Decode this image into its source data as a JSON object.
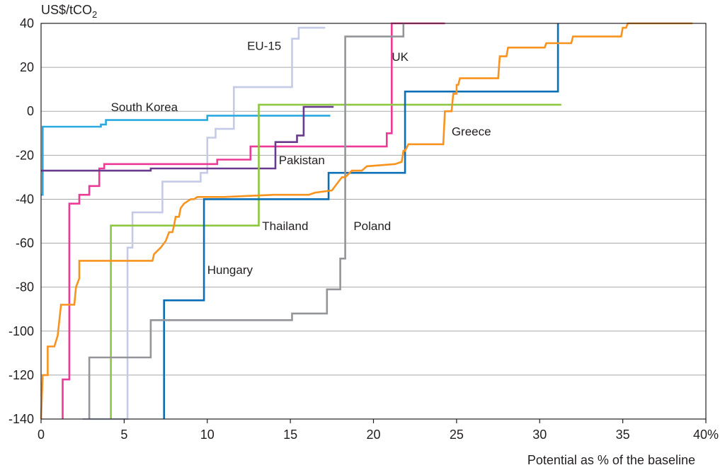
{
  "chart_data": {
    "type": "line",
    "ylabel_main": "US$/tCO",
    "ylabel_sub": "2",
    "xlabel": "Potential as % of the baseline",
    "xlim": [
      0,
      40
    ],
    "ylim": [
      -140,
      40
    ],
    "x_ticks": [
      {
        "value": 0,
        "label": "0"
      },
      {
        "value": 5,
        "label": "5"
      },
      {
        "value": 10,
        "label": "10"
      },
      {
        "value": 15,
        "label": "15"
      },
      {
        "value": 20,
        "label": "20"
      },
      {
        "value": 25,
        "label": "25"
      },
      {
        "value": 30,
        "label": "30"
      },
      {
        "value": 35,
        "label": "35"
      },
      {
        "value": 40,
        "label": "40%"
      }
    ],
    "y_ticks": [
      {
        "value": 40,
        "label": "40"
      },
      {
        "value": 20,
        "label": "20"
      },
      {
        "value": 0,
        "label": "0"
      },
      {
        "value": -20,
        "label": "-20"
      },
      {
        "value": -40,
        "label": "-40"
      },
      {
        "value": -60,
        "label": "-60"
      },
      {
        "value": -80,
        "label": "-80"
      },
      {
        "value": -100,
        "label": "-100"
      },
      {
        "value": -120,
        "label": "-120"
      },
      {
        "value": -140,
        "label": "-140"
      }
    ],
    "grid": "horizontal",
    "series": [
      {
        "name": "EU-15",
        "color": "#c5cbe7",
        "label_at": [
          12.4,
          28
        ],
        "points": [
          [
            2.5,
            -140
          ],
          [
            5.2,
            -140
          ],
          [
            5.2,
            -62
          ],
          [
            5.5,
            -62
          ],
          [
            5.5,
            -46
          ],
          [
            7.3,
            -46
          ],
          [
            7.3,
            -32
          ],
          [
            9.6,
            -32
          ],
          [
            9.6,
            -28
          ],
          [
            10,
            -28
          ],
          [
            10,
            -12
          ],
          [
            10.5,
            -12
          ],
          [
            10.5,
            -8
          ],
          [
            11.6,
            -8
          ],
          [
            11.6,
            11
          ],
          [
            15.1,
            11
          ],
          [
            15.1,
            33
          ],
          [
            15.5,
            33
          ],
          [
            15.5,
            38
          ],
          [
            17.1,
            38
          ]
        ]
      },
      {
        "name": "South Korea",
        "color": "#29a9e0",
        "label_at": [
          4.2,
          0
        ],
        "points": [
          [
            0,
            -38
          ],
          [
            0.1,
            -38
          ],
          [
            0.1,
            -7
          ],
          [
            3.6,
            -7
          ],
          [
            3.6,
            -6
          ],
          [
            3.9,
            -6
          ],
          [
            3.9,
            -4
          ],
          [
            10,
            -4
          ],
          [
            10,
            -2
          ],
          [
            17.4,
            -2
          ]
        ]
      },
      {
        "name": "UK",
        "color": "#ec3a96",
        "label_at": [
          21.1,
          23
        ],
        "points": [
          [
            1.3,
            -140
          ],
          [
            1.3,
            -122
          ],
          [
            1.7,
            -122
          ],
          [
            1.7,
            -42
          ],
          [
            2.3,
            -42
          ],
          [
            2.3,
            -38
          ],
          [
            2.9,
            -38
          ],
          [
            2.9,
            -34
          ],
          [
            3.5,
            -34
          ],
          [
            3.5,
            -26
          ],
          [
            3.8,
            -26
          ],
          [
            3.8,
            -24
          ],
          [
            10.6,
            -24
          ],
          [
            10.6,
            -22
          ],
          [
            12.6,
            -22
          ],
          [
            12.6,
            -16
          ],
          [
            20.8,
            -16
          ],
          [
            20.8,
            -10
          ],
          [
            21.1,
            -10
          ],
          [
            21.1,
            40
          ],
          [
            24.3,
            40
          ]
        ]
      },
      {
        "name": "Pakistan",
        "color": "#6a3a8e",
        "label_at": [
          14.3,
          -24
        ],
        "points": [
          [
            0,
            -27
          ],
          [
            6.6,
            -27
          ],
          [
            6.6,
            -26
          ],
          [
            14.1,
            -26
          ],
          [
            14.1,
            -14
          ],
          [
            15.4,
            -14
          ],
          [
            15.4,
            -11
          ],
          [
            15.8,
            -11
          ],
          [
            15.8,
            2
          ],
          [
            17.6,
            2
          ]
        ]
      },
      {
        "name": "Thailand",
        "color": "#8dc641",
        "label_at": [
          13.3,
          -54
        ],
        "points": [
          [
            4.2,
            -140
          ],
          [
            4.2,
            -52
          ],
          [
            13.1,
            -52
          ],
          [
            13.1,
            3
          ],
          [
            31.3,
            3
          ]
        ]
      },
      {
        "name": "Hungary",
        "color": "#0b6fb6",
        "label_at": [
          10,
          -74
        ],
        "points": [
          [
            7.4,
            -140
          ],
          [
            7.4,
            -86
          ],
          [
            9.8,
            -86
          ],
          [
            9.8,
            -40
          ],
          [
            17.3,
            -40
          ],
          [
            17.3,
            -28
          ],
          [
            21.9,
            -28
          ],
          [
            21.9,
            9
          ],
          [
            31.1,
            9
          ],
          [
            31.1,
            40
          ]
        ]
      },
      {
        "name": "Poland",
        "color": "#939598",
        "label_at": [
          18.8,
          -54
        ],
        "points": [
          [
            2.9,
            -140
          ],
          [
            2.9,
            -112
          ],
          [
            6.6,
            -112
          ],
          [
            6.6,
            -95
          ],
          [
            15.1,
            -95
          ],
          [
            15.1,
            -92
          ],
          [
            17.2,
            -92
          ],
          [
            17.2,
            -81
          ],
          [
            18,
            -81
          ],
          [
            18,
            -67
          ],
          [
            18.3,
            -67
          ],
          [
            18.3,
            34
          ],
          [
            21.8,
            34
          ],
          [
            21.8,
            40
          ]
        ]
      },
      {
        "name": "Greece",
        "color": "#f7931e",
        "label_at": [
          24.7,
          -11
        ],
        "points": [
          [
            0,
            -140
          ],
          [
            0.1,
            -120
          ],
          [
            0.4,
            -120
          ],
          [
            0.4,
            -107
          ],
          [
            0.8,
            -107
          ],
          [
            1,
            -102
          ],
          [
            1.2,
            -88
          ],
          [
            2,
            -88
          ],
          [
            2.1,
            -80
          ],
          [
            2.3,
            -76
          ],
          [
            2.3,
            -68
          ],
          [
            6.7,
            -68
          ],
          [
            6.8,
            -65
          ],
          [
            7.2,
            -62
          ],
          [
            7.5,
            -59
          ],
          [
            7.7,
            -55
          ],
          [
            7.9,
            -55
          ],
          [
            8,
            -52
          ],
          [
            8.1,
            -48
          ],
          [
            8.3,
            -48
          ],
          [
            8.4,
            -44
          ],
          [
            8.6,
            -42
          ],
          [
            9,
            -40
          ],
          [
            9.2,
            -40
          ],
          [
            9.4,
            -39
          ],
          [
            11,
            -39
          ],
          [
            14,
            -38
          ],
          [
            16.1,
            -38
          ],
          [
            16.5,
            -37
          ],
          [
            17.5,
            -36
          ],
          [
            18.1,
            -30
          ],
          [
            18.3,
            -30
          ],
          [
            18.7,
            -27
          ],
          [
            19.3,
            -27
          ],
          [
            19.6,
            -25
          ],
          [
            21.3,
            -24
          ],
          [
            21.7,
            -23
          ],
          [
            21.8,
            -18
          ],
          [
            21.9,
            -18
          ],
          [
            22.1,
            -15
          ],
          [
            24.2,
            -15
          ],
          [
            24.3,
            0
          ],
          [
            24.7,
            0
          ],
          [
            24.8,
            8
          ],
          [
            25,
            8
          ],
          [
            25,
            12
          ],
          [
            25.1,
            12
          ],
          [
            25.2,
            15
          ],
          [
            27.5,
            15
          ],
          [
            27.6,
            25
          ],
          [
            28,
            25
          ],
          [
            28.1,
            29
          ],
          [
            30.3,
            29
          ],
          [
            30.4,
            31
          ],
          [
            31.9,
            31
          ],
          [
            32,
            34
          ],
          [
            34.9,
            34
          ],
          [
            35,
            38
          ],
          [
            35.2,
            38
          ],
          [
            35.3,
            40
          ],
          [
            39.2,
            40
          ]
        ]
      }
    ]
  }
}
